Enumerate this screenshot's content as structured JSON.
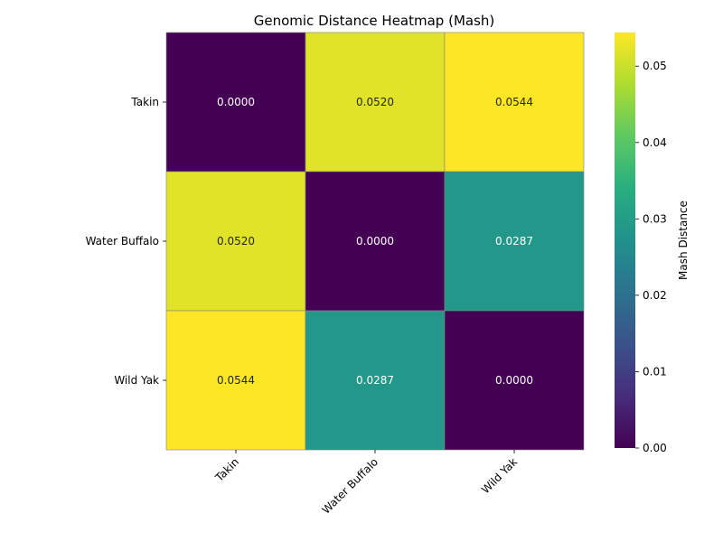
{
  "chart_data": {
    "type": "heatmap",
    "title": "Genomic Distance Heatmap (Mash)",
    "row_labels": [
      "Takin",
      "Water Buffalo",
      "Wild Yak"
    ],
    "col_labels": [
      "Takin",
      "Water Buffalo",
      "Wild Yak"
    ],
    "values": [
      [
        0.0,
        0.052,
        0.0544
      ],
      [
        0.052,
        0.0,
        0.0287
      ],
      [
        0.0544,
        0.0287,
        0.0
      ]
    ],
    "cell_text": [
      [
        "0.0000",
        "0.0520",
        "0.0544"
      ],
      [
        "0.0520",
        "0.0000",
        "0.0287"
      ],
      [
        "0.0544",
        "0.0287",
        "0.0000"
      ]
    ],
    "colormap": "viridis",
    "colorbar": {
      "label": "Mash Distance",
      "range": [
        0,
        0.0544
      ],
      "ticks": [
        0.0,
        0.01,
        0.02,
        0.03,
        0.04,
        0.05
      ],
      "tick_labels": [
        "0.00",
        "0.01",
        "0.02",
        "0.03",
        "0.04",
        "0.05"
      ]
    },
    "x_tick_rotation": "45 degrees",
    "grid": "cell borders in gray"
  }
}
